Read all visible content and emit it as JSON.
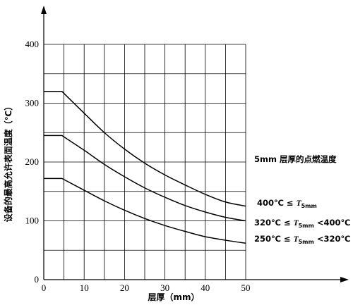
{
  "chart_data": {
    "type": "line",
    "xlabel": "层厚（mm）",
    "ylabel": "设备的最高允许表面温度（℃）",
    "xlim": [
      0,
      50
    ],
    "ylim": [
      0,
      400
    ],
    "x_ticks": [
      "0",
      "10",
      "20",
      "30",
      "40",
      "50"
    ],
    "y_ticks": [
      "0",
      "100",
      "200",
      "300",
      "400"
    ],
    "grid": true,
    "series": [
      {
        "x": [
          0,
          4.5,
          10,
          15,
          20,
          25,
          30,
          35,
          40,
          45,
          50
        ],
        "y": [
          320,
          320,
          283,
          250,
          222,
          198,
          178,
          161,
          145,
          132,
          125
        ]
      },
      {
        "x": [
          0,
          4.5,
          10,
          15,
          20,
          25,
          30,
          35,
          40,
          45,
          50
        ],
        "y": [
          245,
          245,
          220,
          196,
          175,
          156,
          140,
          126,
          115,
          106,
          100
        ]
      },
      {
        "x": [
          0,
          4.5,
          10,
          15,
          20,
          25,
          30,
          35,
          40,
          45,
          50
        ],
        "y": [
          172,
          172,
          152,
          134,
          118,
          104,
          92,
          82,
          73,
          67,
          62
        ]
      }
    ],
    "annotations": {
      "title_right": "5mm 层厚的点燃温度",
      "range_high": "400℃ ≤ T5mm",
      "range_mid": "320℃ ≤ T5mm <400℃",
      "range_low": "250℃ ≤ T5mm <320℃"
    }
  }
}
